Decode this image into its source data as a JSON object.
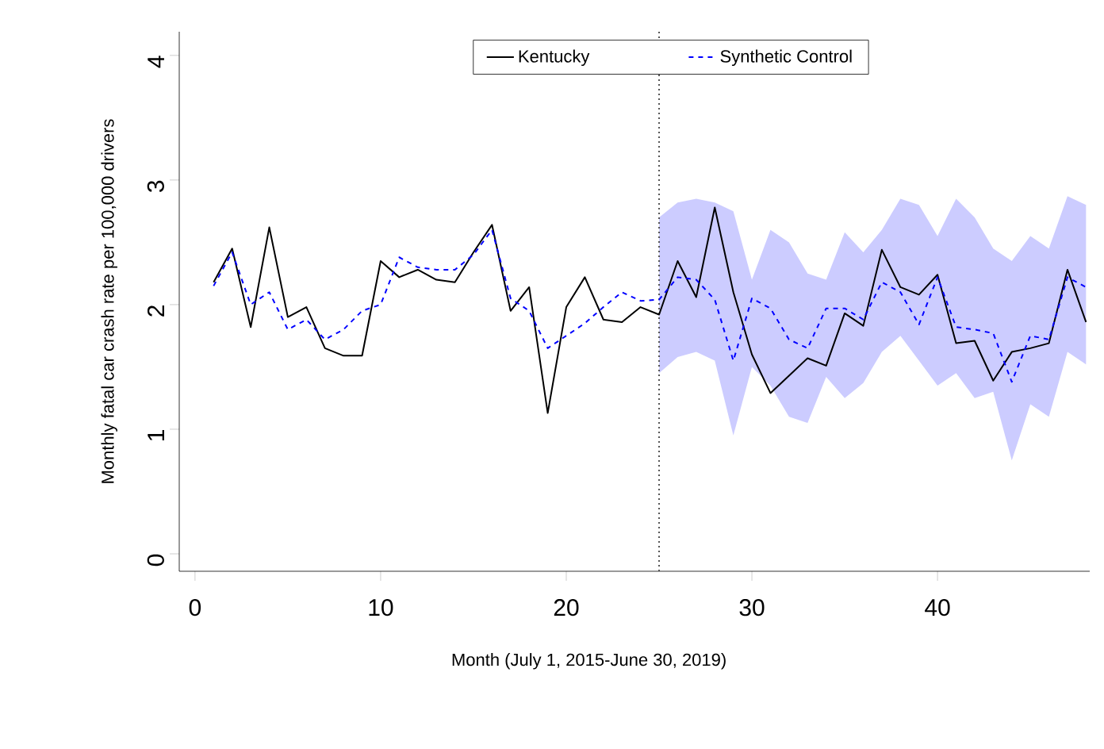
{
  "chart_data": {
    "type": "line",
    "xlabel": "Month (July 1, 2015-June 30, 2019)",
    "ylabel": "Monthly fatal car crash rate per 100,000 drivers",
    "x": [
      1,
      2,
      3,
      4,
      5,
      6,
      7,
      8,
      9,
      10,
      11,
      12,
      13,
      14,
      15,
      16,
      17,
      18,
      19,
      20,
      21,
      22,
      23,
      24,
      25,
      26,
      27,
      28,
      29,
      30,
      31,
      32,
      33,
      34,
      35,
      36,
      37,
      38,
      39,
      40,
      41,
      42,
      43,
      44,
      45,
      46,
      47,
      48
    ],
    "xlim": [
      -0.85,
      48.2
    ],
    "ylim": [
      -0.14,
      4.19
    ],
    "xticks": [
      0,
      10,
      20,
      30,
      40
    ],
    "yticks": [
      0,
      1,
      2,
      3,
      4
    ],
    "legend": "top",
    "series": [
      {
        "name": "Kentucky",
        "color": "#000000",
        "line_style": "solid",
        "values": [
          2.18,
          2.45,
          1.82,
          2.62,
          1.9,
          1.98,
          1.65,
          1.59,
          1.59,
          2.35,
          2.22,
          2.28,
          2.2,
          2.18,
          2.42,
          2.64,
          1.95,
          2.14,
          1.13,
          1.98,
          2.22,
          1.88,
          1.86,
          1.98,
          1.92,
          2.35,
          2.06,
          2.78,
          2.1,
          1.6,
          1.29,
          1.43,
          1.57,
          1.51,
          1.93,
          1.83,
          2.44,
          2.14,
          2.08,
          2.24,
          1.69,
          1.71,
          1.39,
          1.62,
          1.65,
          1.69,
          2.28,
          1.86
        ]
      },
      {
        "name": "Synthetic Control",
        "color": "#0000ff",
        "line_style": "dashed",
        "values": [
          2.15,
          2.42,
          2.0,
          2.1,
          1.8,
          1.88,
          1.72,
          1.8,
          1.95,
          2.0,
          2.38,
          2.3,
          2.28,
          2.28,
          2.4,
          2.6,
          2.05,
          1.95,
          1.65,
          1.75,
          1.85,
          1.98,
          2.1,
          2.03,
          2.04,
          2.22,
          2.2,
          2.04,
          1.55,
          2.05,
          1.97,
          1.72,
          1.65,
          1.97,
          1.97,
          1.88,
          2.18,
          2.1,
          1.84,
          2.22,
          1.82,
          1.8,
          1.77,
          1.38,
          1.75,
          1.72,
          2.22,
          2.14
        ],
        "upper": [
          null,
          null,
          null,
          null,
          null,
          null,
          null,
          null,
          null,
          null,
          null,
          null,
          null,
          null,
          null,
          null,
          null,
          null,
          null,
          null,
          null,
          null,
          null,
          null,
          2.7,
          2.82,
          2.85,
          2.82,
          2.75,
          2.2,
          2.6,
          2.5,
          2.25,
          2.2,
          2.58,
          2.42,
          2.6,
          2.85,
          2.8,
          2.55,
          2.85,
          2.7,
          2.45,
          2.35,
          2.55,
          2.45,
          2.87,
          2.8
        ],
        "lower": [
          null,
          null,
          null,
          null,
          null,
          null,
          null,
          null,
          null,
          null,
          null,
          null,
          null,
          null,
          null,
          null,
          null,
          null,
          null,
          null,
          null,
          null,
          null,
          null,
          1.45,
          1.58,
          1.62,
          1.55,
          0.95,
          1.5,
          1.35,
          1.1,
          1.05,
          1.42,
          1.25,
          1.37,
          1.62,
          1.75,
          1.55,
          1.35,
          1.45,
          1.25,
          1.3,
          0.75,
          1.2,
          1.1,
          1.62,
          1.52
        ]
      }
    ],
    "ref_lines": [
      {
        "axis": "x",
        "value": 25,
        "color": "#555555",
        "line_style": "dotted"
      }
    ]
  }
}
